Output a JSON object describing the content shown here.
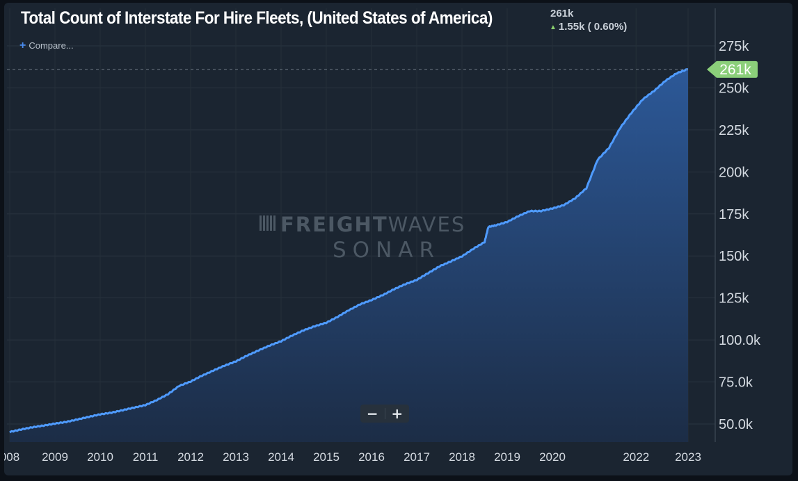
{
  "header": {
    "title": "Total Count of Interstate For Hire Fleets, (United States of America)",
    "current_value": "261k",
    "change_text": "1.55k ( 0.60%)",
    "change_direction_icon": "up-arrow-icon",
    "compare_label": "Compare..."
  },
  "watermark": {
    "line1_bold": "FREIGHT",
    "line1_light": "WAVES",
    "line2": "SONAR"
  },
  "zoom": {
    "minus_label": "−",
    "plus_label": "+"
  },
  "colors": {
    "background": "#1b2531",
    "line": "#4f9bff",
    "area_top": "#2a5592",
    "area_bottom": "#1b2b45",
    "value_tag": "#8bcf7a",
    "up_arrow": "#8bd16e"
  },
  "chart_data": {
    "type": "area",
    "title": "Total Count of Interstate For Hire Fleets, (United States of America)",
    "x_tick_labels": [
      "008",
      "2009",
      "2010",
      "2011",
      "2012",
      "2013",
      "2014",
      "2015",
      "2016",
      "2017",
      "2018",
      "2019",
      "2020",
      "2022",
      "2023"
    ],
    "y_tick_labels": [
      "50.0k",
      "75.0k",
      "100.0k",
      "125k",
      "150k",
      "175k",
      "200k",
      "225k",
      "250k",
      "275k"
    ],
    "y_ticks": [
      50000,
      75000,
      100000,
      125000,
      150000,
      175000,
      200000,
      225000,
      250000,
      275000
    ],
    "ylim": [
      45000,
      300000
    ],
    "last_value": 261000,
    "last_value_label": "261k",
    "series": [
      {
        "values": [
          [
            "2008-01",
            45000
          ],
          [
            "2008-04",
            46500
          ],
          [
            "2008-07",
            47800
          ],
          [
            "2008-10",
            48800
          ],
          [
            "2009-01",
            50000
          ],
          [
            "2009-04",
            51000
          ],
          [
            "2009-07",
            52500
          ],
          [
            "2009-10",
            54000
          ],
          [
            "2010-01",
            55500
          ],
          [
            "2010-04",
            56500
          ],
          [
            "2010-07",
            58000
          ],
          [
            "2010-10",
            59500
          ],
          [
            "2011-01",
            61000
          ],
          [
            "2011-04",
            64000
          ],
          [
            "2011-07",
            67500
          ],
          [
            "2011-10",
            72500
          ],
          [
            "2012-01",
            75000
          ],
          [
            "2012-04",
            78500
          ],
          [
            "2012-07",
            81500
          ],
          [
            "2012-10",
            84500
          ],
          [
            "2013-01",
            87000
          ],
          [
            "2013-04",
            90500
          ],
          [
            "2013-07",
            93500
          ],
          [
            "2013-10",
            96500
          ],
          [
            "2014-01",
            99000
          ],
          [
            "2014-04",
            102500
          ],
          [
            "2014-07",
            105500
          ],
          [
            "2014-10",
            108000
          ],
          [
            "2015-01",
            110000
          ],
          [
            "2015-04",
            113500
          ],
          [
            "2015-07",
            117500
          ],
          [
            "2015-10",
            121000
          ],
          [
            "2016-01",
            123500
          ],
          [
            "2016-04",
            126500
          ],
          [
            "2016-07",
            130000
          ],
          [
            "2016-10",
            133000
          ],
          [
            "2017-01",
            135500
          ],
          [
            "2017-04",
            139500
          ],
          [
            "2017-07",
            143500
          ],
          [
            "2017-10",
            146500
          ],
          [
            "2018-01",
            149500
          ],
          [
            "2018-04",
            154000
          ],
          [
            "2018-07",
            158000
          ],
          [
            "2018-08",
            167000
          ],
          [
            "2018-10",
            168000
          ],
          [
            "2019-01",
            170000
          ],
          [
            "2019-04",
            173500
          ],
          [
            "2019-07",
            176500
          ],
          [
            "2019-10",
            176500
          ],
          [
            "2020-01",
            178000
          ],
          [
            "2020-04",
            180000
          ],
          [
            "2020-07",
            184000
          ],
          [
            "2020-10",
            190000
          ],
          [
            "2021-01",
            207000
          ],
          [
            "2021-04",
            214000
          ],
          [
            "2021-07",
            226000
          ],
          [
            "2021-10",
            235000
          ],
          [
            "2022-01",
            243000
          ],
          [
            "2022-04",
            248000
          ],
          [
            "2022-07",
            254000
          ],
          [
            "2022-10",
            258500
          ],
          [
            "2023-01",
            261000
          ]
        ]
      }
    ],
    "grid": true,
    "value_line": "dashed"
  }
}
